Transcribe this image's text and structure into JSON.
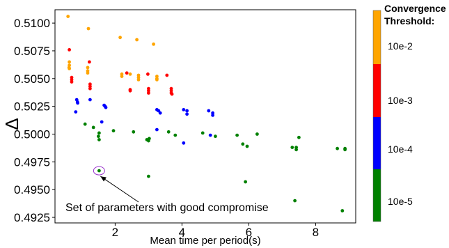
{
  "chart_data": {
    "type": "scatter",
    "title": "",
    "xlabel": "Mean time per period(s)",
    "ylabel": "Δ",
    "xlim": [
      0.2,
      9.2
    ],
    "ylim": [
      0.492,
      0.5112
    ],
    "xticks": [
      2,
      4,
      6,
      8
    ],
    "xtick_labels": [
      "2",
      "4",
      "6",
      "8"
    ],
    "yticks": [
      0.4925,
      0.495,
      0.4975,
      0.5,
      0.5025,
      0.505,
      0.5075,
      0.51
    ],
    "ytick_labels": [
      "0.4925",
      "0.4950",
      "0.4975",
      "0.5000",
      "0.5025",
      "0.5050",
      "0.5075",
      "0.5100"
    ],
    "grid": false,
    "legend": {
      "title": "Convergence Threshold:",
      "placement": "right colorbar",
      "entries": [
        {
          "label": "10e-2",
          "color": "#FFA500"
        },
        {
          "label": "10e-3",
          "color": "#FF0000"
        },
        {
          "label": "10e-4",
          "color": "#0000FF"
        },
        {
          "label": "10e-5",
          "color": "#008000"
        }
      ]
    },
    "annotation": {
      "text": "Set of parameters with good compromise",
      "x": 1.52,
      "y": 0.4967
    },
    "series": [
      {
        "name": "10e-2",
        "color": "#FFA500",
        "points": [
          [
            0.59,
            0.5106
          ],
          [
            1.2,
            0.5095
          ],
          [
            2.15,
            0.5087
          ],
          [
            2.65,
            0.5085
          ],
          [
            3.15,
            0.5081
          ],
          [
            0.63,
            0.5065
          ],
          [
            0.63,
            0.5062
          ],
          [
            0.62,
            0.506
          ],
          [
            0.63,
            0.5059
          ],
          [
            1.18,
            0.506
          ],
          [
            1.18,
            0.5057
          ],
          [
            1.18,
            0.5055
          ],
          [
            2.2,
            0.5054
          ],
          [
            2.2,
            0.5052
          ],
          [
            2.45,
            0.5054
          ],
          [
            2.7,
            0.5053
          ],
          [
            2.7,
            0.5051
          ],
          [
            2.7,
            0.5049
          ],
          [
            3.25,
            0.5052
          ],
          [
            3.25,
            0.505
          ],
          [
            3.25,
            0.5049
          ]
        ]
      },
      {
        "name": "10e-3",
        "color": "#FF0000",
        "points": [
          [
            0.63,
            0.5076
          ],
          [
            0.7,
            0.5051
          ],
          [
            0.7,
            0.5049
          ],
          [
            0.7,
            0.5047
          ],
          [
            1.23,
            0.5065
          ],
          [
            1.25,
            0.5045
          ],
          [
            1.25,
            0.5043
          ],
          [
            1.25,
            0.5041
          ],
          [
            2.35,
            0.5055
          ],
          [
            2.45,
            0.504
          ],
          [
            2.45,
            0.5039
          ],
          [
            2.98,
            0.5054
          ],
          [
            3.0,
            0.5041
          ],
          [
            3.0,
            0.5039
          ],
          [
            3.0,
            0.5037
          ],
          [
            3.55,
            0.5053
          ],
          [
            3.68,
            0.5041
          ],
          [
            3.68,
            0.5039
          ],
          [
            3.68,
            0.5037
          ],
          [
            3.7,
            0.5036
          ]
        ]
      },
      {
        "name": "10e-4",
        "color": "#0000FF",
        "points": [
          [
            0.85,
            0.5031
          ],
          [
            0.87,
            0.5029
          ],
          [
            0.88,
            0.5028
          ],
          [
            0.82,
            0.502
          ],
          [
            1.25,
            0.5031
          ],
          [
            1.6,
            0.5011
          ],
          [
            1.67,
            0.5026
          ],
          [
            1.7,
            0.5025
          ],
          [
            1.72,
            0.5024
          ],
          [
            3.25,
            0.5022
          ],
          [
            3.3,
            0.5021
          ],
          [
            3.35,
            0.5019
          ],
          [
            3.25,
            0.5004
          ],
          [
            4.05,
            0.5022
          ],
          [
            4.15,
            0.5021
          ],
          [
            4.15,
            0.5018
          ],
          [
            4.05,
            0.4992
          ],
          [
            4.8,
            0.5021
          ],
          [
            4.92,
            0.5019
          ],
          [
            4.92,
            0.5017
          ],
          [
            4.85,
            0.4999
          ]
        ]
      },
      {
        "name": "10e-5",
        "color": "#008000",
        "points": [
          [
            1.1,
            0.5009
          ],
          [
            1.35,
            0.5006
          ],
          [
            1.52,
            0.5001
          ],
          [
            1.5,
            0.4998
          ],
          [
            1.52,
            0.4995
          ],
          [
            1.95,
            0.5003
          ],
          [
            2.55,
            0.5002
          ],
          [
            2.95,
            0.4995
          ],
          [
            3.0,
            0.4994
          ],
          [
            3.02,
            0.4996
          ],
          [
            3.6,
            0.5002
          ],
          [
            3.8,
            0.4999
          ],
          [
            4.62,
            0.5001
          ],
          [
            5.0,
            0.4998
          ],
          [
            5.65,
            0.4999
          ],
          [
            5.82,
            0.4991
          ],
          [
            5.95,
            0.4989
          ],
          [
            6.25,
            0.5
          ],
          [
            7.3,
            0.4988
          ],
          [
            7.42,
            0.4988
          ],
          [
            7.42,
            0.4986
          ],
          [
            7.5,
            0.4997
          ],
          [
            8.65,
            0.4987
          ],
          [
            8.88,
            0.4987
          ],
          [
            8.88,
            0.4986
          ],
          [
            1.52,
            0.4967
          ],
          [
            3.0,
            0.4962
          ],
          [
            5.9,
            0.4957
          ],
          [
            7.38,
            0.494
          ],
          [
            8.8,
            0.4931
          ]
        ]
      }
    ]
  }
}
